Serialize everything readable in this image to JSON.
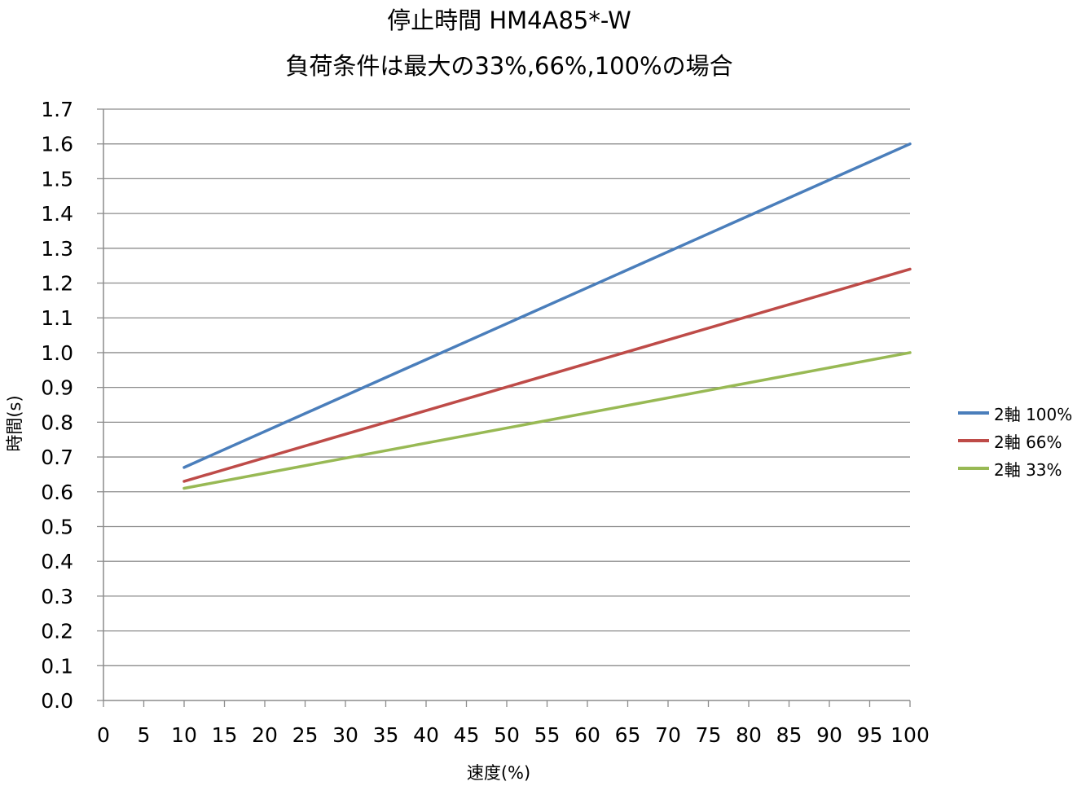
{
  "chart_data": {
    "type": "line",
    "title": "停止時間 HM4A85*-W",
    "subtitle": "負荷条件は最大の33%,66%,100%の場合",
    "xlabel": "速度(%)",
    "ylabel": "時間(s)",
    "xlim": [
      0,
      100
    ],
    "ylim": [
      0.0,
      1.7
    ],
    "x_ticks": [
      "0",
      "5",
      "10",
      "15",
      "20",
      "25",
      "30",
      "35",
      "40",
      "45",
      "50",
      "55",
      "60",
      "65",
      "70",
      "75",
      "80",
      "85",
      "90",
      "95",
      "100"
    ],
    "y_ticks": [
      "0.0",
      "0.1",
      "0.2",
      "0.3",
      "0.4",
      "0.5",
      "0.6",
      "0.7",
      "0.8",
      "0.9",
      "1.0",
      "1.1",
      "1.2",
      "1.3",
      "1.4",
      "1.5",
      "1.6",
      "1.7"
    ],
    "grid": "horizontal",
    "legend_position": "right",
    "series": [
      {
        "name": "2軸 100%",
        "color": "#4a7ebb",
        "x": [
          10,
          100
        ],
        "y": [
          0.67,
          1.6
        ]
      },
      {
        "name": "2軸 66%",
        "color": "#be4b48",
        "x": [
          10,
          100
        ],
        "y": [
          0.63,
          1.24
        ]
      },
      {
        "name": "2軸 33%",
        "color": "#98b954",
        "x": [
          10,
          100
        ],
        "y": [
          0.61,
          1.0
        ]
      }
    ]
  }
}
